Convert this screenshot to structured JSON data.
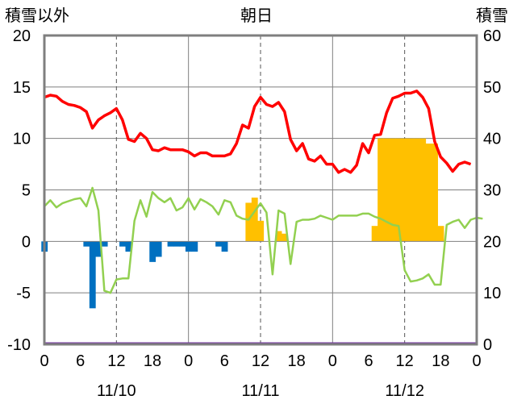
{
  "chart_data": {
    "type": "bar+line",
    "title": "朝日",
    "left_axis_label": "積雪以外",
    "right_axis_label": "積雪",
    "left_ylim": [
      -10,
      20
    ],
    "left_yticks": [
      "20",
      "15",
      "10",
      "5",
      "0",
      "-5",
      "-10"
    ],
    "right_ylim": [
      0,
      60
    ],
    "right_yticks": [
      "60",
      "50",
      "40",
      "30",
      "20",
      "10",
      "0"
    ],
    "x_hour_ticks": [
      "0",
      "6",
      "12",
      "18",
      "0",
      "6",
      "12",
      "18",
      "0",
      "6",
      "12",
      "18",
      "0"
    ],
    "date_labels": [
      "11/10",
      "11/11",
      "11/12"
    ],
    "grid": true,
    "colors": {
      "red_line": "#ff0000",
      "green_line": "#92d050",
      "blue_bars": "#0070c0",
      "orange_bars": "#ffc000",
      "purple_line": "#7030a0",
      "frame": "#7f7f7f"
    },
    "red_line": [
      14,
      14.2,
      14.1,
      13.6,
      13.3,
      13.2,
      13,
      12.6,
      11,
      11.8,
      12.2,
      12.5,
      12.9,
      11.8,
      9.9,
      9.7,
      10.5,
      10,
      8.9,
      8.8,
      9.1,
      8.9,
      8.9,
      8.9,
      8.7,
      8.3,
      8.6,
      8.6,
      8.3,
      8.3,
      8.3,
      8.5,
      9.5,
      11.3,
      11,
      13.1,
      14,
      13.3,
      13.1,
      13.5,
      12.6,
      9.9,
      8.8,
      9.5,
      8,
      7.8,
      8.3,
      7.5,
      7.5,
      6.7,
      7,
      6.7,
      7.4,
      9.5,
      8.6,
      10.3,
      10.4,
      12.5,
      13.9,
      14.1,
      14.4,
      14.4,
      14.6,
      14,
      12.9,
      9.7,
      8.2,
      7.6,
      6.8,
      7.5,
      7.7,
      7.5
    ],
    "green_line": [
      3.4,
      4,
      3.3,
      3.7,
      3.9,
      4.1,
      4.2,
      3.4,
      5.2,
      3,
      -4.8,
      -5,
      -3.7,
      -3.6,
      -3.6,
      2,
      4,
      2.4,
      4.8,
      4.2,
      3.8,
      4.2,
      3,
      3.3,
      4.2,
      3.1,
      4.1,
      3.8,
      3.4,
      2.6,
      4,
      3.8,
      2.5,
      2.2,
      2.1,
      2.9,
      3.7,
      2.8,
      -3.2,
      3,
      2.7,
      -2.2,
      1.9,
      2.1,
      2.1,
      2.2,
      2.5,
      2.3,
      2.1,
      2.5,
      2.5,
      2.5,
      2.5,
      2.7,
      2.7,
      2.4,
      2.2,
      1.9,
      1.6,
      1.5,
      -2.8,
      -3.9,
      -3.8,
      -3.6,
      -3.2,
      -4.2,
      -4.2,
      1.6,
      1.9,
      2.1,
      1.3,
      2.1,
      2.3,
      2.2
    ],
    "blue_bars": [
      [
        0,
        -1
      ],
      [
        7,
        -0.5
      ],
      [
        8,
        -6.5
      ],
      [
        9,
        -1.5
      ],
      [
        10,
        -0.5
      ],
      [
        13,
        -0.5
      ],
      [
        14,
        -1
      ],
      [
        18,
        -2
      ],
      [
        19,
        -1.5
      ],
      [
        21,
        -0.5
      ],
      [
        22,
        -0.5
      ],
      [
        23,
        -0.5
      ],
      [
        24,
        -1
      ],
      [
        25,
        -1
      ],
      [
        29,
        -0.5
      ],
      [
        30,
        -1
      ]
    ],
    "orange_bars": [
      [
        34,
        27.5
      ],
      [
        35,
        28.5
      ],
      [
        36,
        24
      ],
      [
        39,
        22
      ],
      [
        40,
        21.5
      ],
      [
        55,
        23
      ],
      [
        56,
        40
      ],
      [
        57,
        40
      ],
      [
        58,
        40
      ],
      [
        59,
        40
      ],
      [
        60,
        40
      ],
      [
        61,
        40
      ],
      [
        62,
        40
      ],
      [
        63,
        40
      ],
      [
        64,
        39
      ],
      [
        65,
        39
      ],
      [
        66,
        23
      ]
    ]
  }
}
